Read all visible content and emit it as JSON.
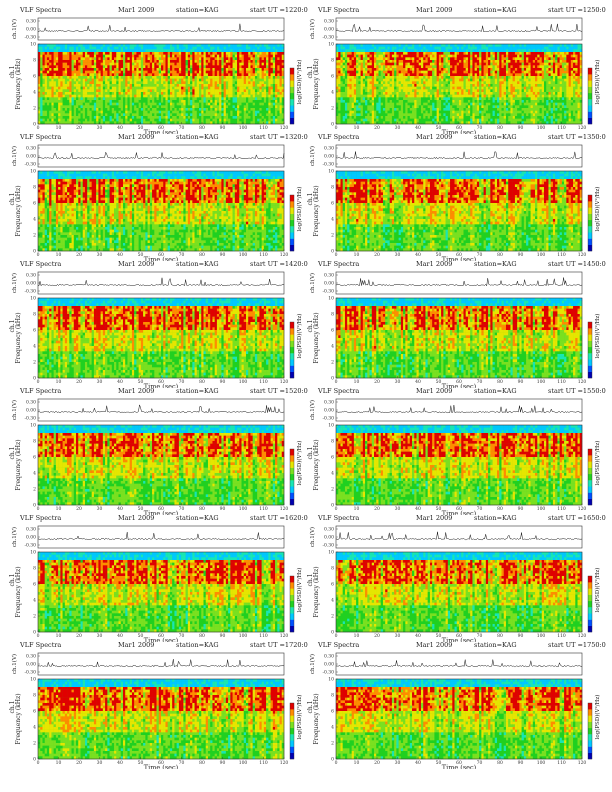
{
  "panels": [
    {
      "title": "VLF Spectra",
      "date": "Mar1 2009",
      "station": "station=KAG",
      "start": "start  UT =1220:0",
      "seed": 1
    },
    {
      "title": "VLF Spectra",
      "date": "Mar1 2009",
      "station": "station=KAG",
      "start": "start  UT =1250:0",
      "seed": 2
    },
    {
      "title": "VLF Spectra",
      "date": "Mar1 2009",
      "station": "station=KAG",
      "start": "start  UT =1320:0",
      "seed": 3
    },
    {
      "title": "VLF Spectra",
      "date": "Mar1 2009",
      "station": "station=KAG",
      "start": "start  UT =1350:0",
      "seed": 4
    },
    {
      "title": "VLF Spectra",
      "date": "Mar1 2009",
      "station": "station=KAG",
      "start": "start  UT =1420:0",
      "seed": 5
    },
    {
      "title": "VLF Spectra",
      "date": "Mar1 2009",
      "station": "station=KAG",
      "start": "start  UT =1450:0",
      "seed": 6
    },
    {
      "title": "VLF Spectra",
      "date": "Mar1 2009",
      "station": "station=KAG",
      "start": "start  UT =1520:0",
      "seed": 7
    },
    {
      "title": "VLF Spectra",
      "date": "Mar1 2009",
      "station": "station=KAG",
      "start": "start  UT =1550:0",
      "seed": 8
    },
    {
      "title": "VLF Spectra",
      "date": "Mar1 2009",
      "station": "station=KAG",
      "start": "start  UT =1620:0",
      "seed": 9
    },
    {
      "title": "VLF Spectra",
      "date": "Mar1 2009",
      "station": "station=KAG",
      "start": "start  UT =1650:0",
      "seed": 10
    },
    {
      "title": "VLF Spectra",
      "date": "Mar1 2009",
      "station": "station=KAG",
      "start": "start  UT =1720:0",
      "seed": 11
    },
    {
      "title": "VLF Spectra",
      "date": "Mar1 2009",
      "station": "station=KAG",
      "start": "start  UT =1750:0",
      "seed": 12
    }
  ],
  "chart_data": {
    "type": "heatmap",
    "xlabel": "Time (sec)",
    "ylabel": "Frequency (kHz)",
    "top_ylabel": "ch.1(V)",
    "channel_label": "ch.1",
    "colorbar_label": "log(PSD)(V²/Hz)",
    "xlim": [
      0,
      120
    ],
    "ylim": [
      0,
      10
    ],
    "x_ticks": [
      0,
      10,
      20,
      30,
      40,
      50,
      60,
      70,
      80,
      90,
      100,
      110,
      120
    ],
    "y_ticks": [
      0,
      2,
      4,
      6,
      8,
      10
    ],
    "top_ylim": [
      -0.3,
      0.3
    ],
    "top_ticks": [
      "0.30",
      "0.00",
      "-0.30"
    ],
    "colormap": [
      "#0000b0",
      "#0050ff",
      "#00c8ff",
      "#19e6b4",
      "#20d020",
      "#7ae020",
      "#e6e600",
      "#ff8c00",
      "#e00000"
    ]
  }
}
